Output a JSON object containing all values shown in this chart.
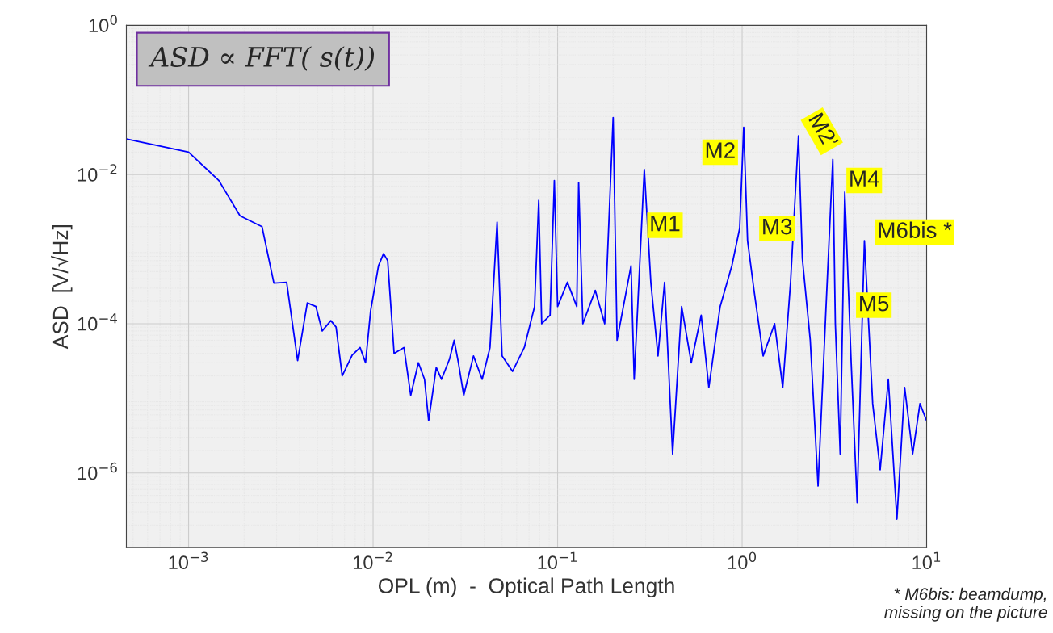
{
  "chart_data": {
    "type": "line",
    "xlabel": "OPL (m)  -  Optical Path Length",
    "ylabel": "ASD  [V/√Hz]",
    "log": "xy",
    "grid": true,
    "line_style": "solid",
    "marker": "none",
    "xlim": [
      0.00046,
      10
    ],
    "ylim": [
      1e-07,
      1
    ],
    "xticks": [
      {
        "value": 0.001,
        "label": "10$^{−3}$"
      },
      {
        "value": 0.01,
        "label": "10$^{−2}$"
      },
      {
        "value": 0.1,
        "label": "10$^{−1}$"
      },
      {
        "value": 1,
        "label": "10$^{0}$"
      },
      {
        "value": 10,
        "label": "10$^{1}$"
      }
    ],
    "yticks": [
      {
        "value": 1e-06,
        "label": "10$^{−6}$"
      },
      {
        "value": 0.0001,
        "label": "10$^{−4}$"
      },
      {
        "value": 0.01,
        "label": "10$^{−2}$"
      },
      {
        "value": 1,
        "label": "10$^{0}$"
      }
    ],
    "series": [
      {
        "color": "#0000ff",
        "x": [
          0.00046,
          0.001,
          0.00146,
          0.0019,
          0.0025,
          0.0029,
          0.0034,
          0.0039,
          0.0044,
          0.0049,
          0.0053,
          0.0059,
          0.0063,
          0.0068,
          0.0077,
          0.0085,
          0.0091,
          0.0097,
          0.0107,
          0.0114,
          0.012,
          0.013,
          0.0147,
          0.016,
          0.0176,
          0.019,
          0.02,
          0.022,
          0.0235,
          0.026,
          0.0275,
          0.029,
          0.031,
          0.035,
          0.039,
          0.043,
          0.047,
          0.05,
          0.057,
          0.066,
          0.075,
          0.079,
          0.082,
          0.091,
          0.096,
          0.1,
          0.113,
          0.127,
          0.13,
          0.137,
          0.16,
          0.18,
          0.2,
          0.21,
          0.25,
          0.26,
          0.295,
          0.32,
          0.35,
          0.38,
          0.42,
          0.47,
          0.53,
          0.6,
          0.66,
          0.76,
          0.88,
          0.97,
          1.02,
          1.07,
          1.16,
          1.3,
          1.5,
          1.66,
          1.83,
          2.02,
          2.12,
          2.34,
          2.58,
          2.85,
          3.1,
          3.2,
          3.4,
          3.6,
          3.9,
          4.2,
          4.6,
          5.1,
          5.6,
          6.2,
          6.9,
          7.6,
          8.4,
          9.2,
          10
        ],
        "values": [
          0.03,
          0.02,
          0.0083,
          0.0028,
          0.002,
          0.00035,
          0.00036,
          3.2e-05,
          0.00019,
          0.00017,
          8e-05,
          0.00011,
          9e-05,
          2e-05,
          3.8e-05,
          4.8e-05,
          3e-05,
          0.00015,
          0.0006,
          0.00087,
          0.0007,
          4e-05,
          4.8e-05,
          1.1e-05,
          3e-05,
          1.8e-05,
          5e-06,
          2.6e-05,
          1.8e-05,
          3.4e-05,
          6e-05,
          3e-05,
          1.1e-05,
          3.7e-05,
          1.8e-05,
          4.8e-05,
          0.0023,
          3.7e-05,
          2.3e-05,
          4.8e-05,
          0.00017,
          0.0045,
          0.0001,
          0.00013,
          0.0083,
          0.00017,
          0.00036,
          0.00017,
          0.0078,
          0.0001,
          0.00028,
          0.0001,
          0.058,
          6e-05,
          0.0006,
          1.8e-05,
          0.0117,
          0.00036,
          3.7e-05,
          0.00036,
          1.8e-06,
          0.00017,
          3e-05,
          0.00013,
          1.4e-05,
          0.00017,
          0.0006,
          0.0019,
          0.043,
          0.0013,
          0.00028,
          3.7e-05,
          0.0001,
          1.4e-05,
          0.00036,
          0.033,
          0.00075,
          6e-05,
          6.7e-07,
          0.00017,
          0.016,
          0.0001,
          1.8e-06,
          0.0058,
          3e-05,
          4e-07,
          0.0013,
          8.5e-06,
          1.1e-06,
          1.8e-05,
          2.4e-07,
          1.4e-05,
          1.8e-06,
          8.5e-06,
          5e-06
        ]
      }
    ],
    "annotations": [
      "ASD ∝ FFT( s(t))",
      "M1",
      "M2",
      "M2’",
      "M3",
      "M4",
      "M6bis *",
      "M5",
      "* M6bis: beamdump,\nmissing on the picture"
    ]
  }
}
